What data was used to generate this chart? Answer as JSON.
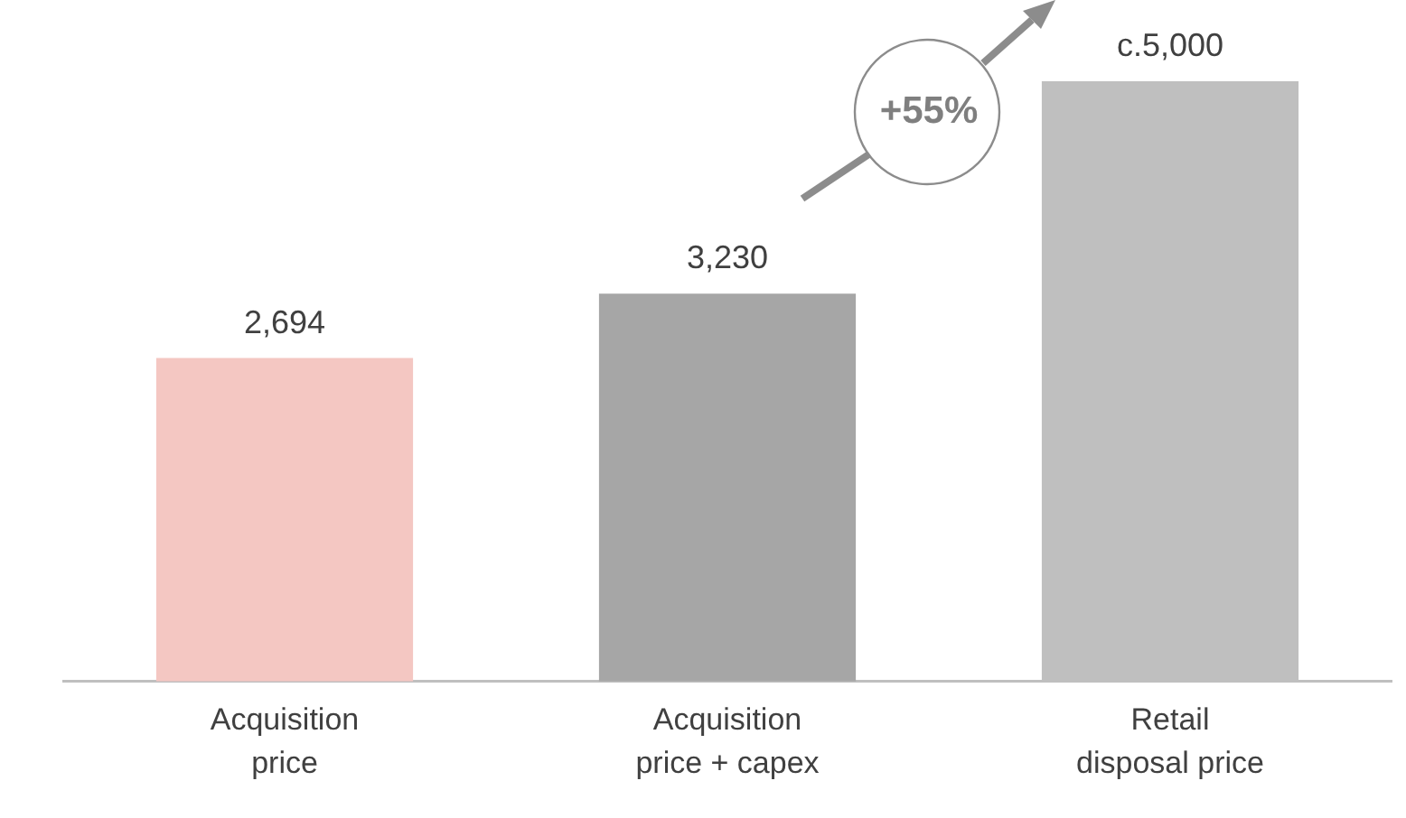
{
  "chart_data": {
    "type": "bar",
    "categories": [
      "Acquisition price",
      "Acquisition price + capex",
      "Retail disposal price"
    ],
    "values": [
      2694,
      3230,
      5000
    ],
    "colors": [
      "#f4c7c2",
      "#a6a6a6",
      "#bfbfbf"
    ],
    "value_labels": [
      "2,694",
      "3,230",
      "c.5,000"
    ],
    "annotations": [
      "+55%"
    ],
    "grid": false,
    "legend": false
  }
}
